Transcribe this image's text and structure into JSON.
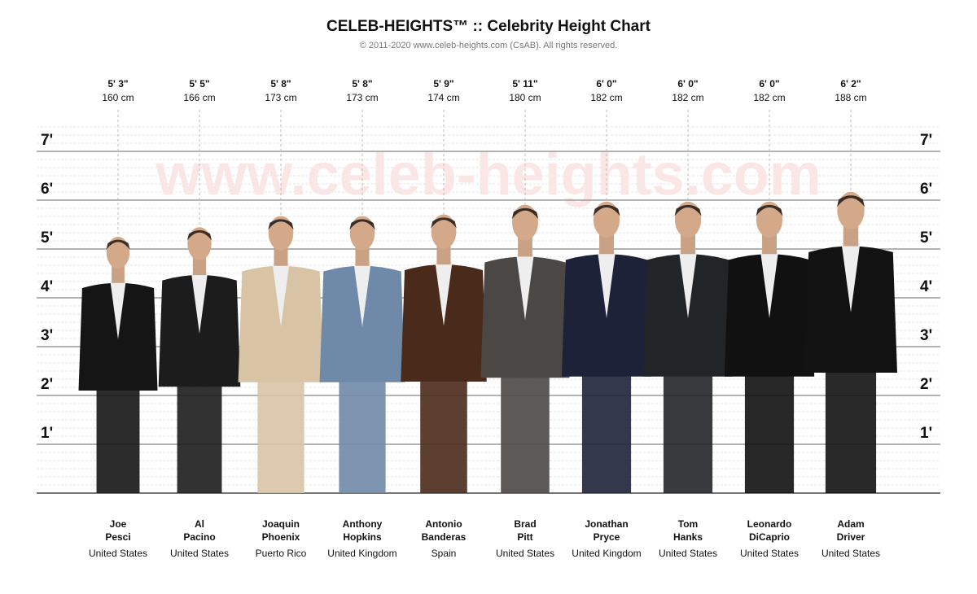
{
  "chart_data": {
    "type": "height",
    "title": "CELEB-HEIGHTS™ :: Celebrity Height Chart",
    "subtitle": "© 2011-2020 www.celeb-heights.com (CsAB). All rights reserved.",
    "watermark": "www.celeb-heights.com",
    "first_names": [
      "Joe",
      "Al",
      "Joaquin",
      "Anthony",
      "Antonio",
      "Brad",
      "Jonathan",
      "Tom",
      "Leonardo",
      "Adam"
    ],
    "last_names": [
      "Pesci",
      "Pacino",
      "Phoenix",
      "Hopkins",
      "Banderas",
      "Pitt",
      "Pryce",
      "Hanks",
      "DiCaprio",
      "Driver"
    ],
    "countries": [
      "United States",
      "United States",
      "Puerto Rico",
      "United Kingdom",
      "Spain",
      "United States",
      "United Kingdom",
      "United States",
      "United States",
      "United States"
    ],
    "values": [
      5.249,
      5.446,
      5.676,
      5.676,
      5.709,
      5.906,
      5.971,
      5.971,
      5.971,
      6.168
    ],
    "value_labels": [
      "5' 3\"",
      "5' 5\"",
      "5' 8\"",
      "5' 8\"",
      "5' 9\"",
      "5' 11\"",
      "6' 0\"",
      "6' 0\"",
      "6' 0\"",
      "6' 2\""
    ],
    "cm_labels": [
      "160 cm",
      "166 cm",
      "173 cm",
      "173 cm",
      "174 cm",
      "180 cm",
      "182 cm",
      "182 cm",
      "182 cm",
      "188 cm"
    ],
    "colors": [
      "#151515",
      "#1c1c1c",
      "#d8c3a5",
      "#6f8aa8",
      "#4a2a1a",
      "#4b4745",
      "#1e2238",
      "#222528",
      "#111111",
      "#121212"
    ],
    "ylim": [
      0,
      7.5
    ],
    "yticks": [
      {
        "value": 1,
        "label": "1'"
      },
      {
        "value": 2,
        "label": "2'"
      },
      {
        "value": 3,
        "label": "3'"
      },
      {
        "value": 4,
        "label": "4'"
      },
      {
        "value": 5,
        "label": "5'"
      },
      {
        "value": 6,
        "label": "6'"
      },
      {
        "value": 7,
        "label": "7'"
      }
    ],
    "grid": true
  }
}
